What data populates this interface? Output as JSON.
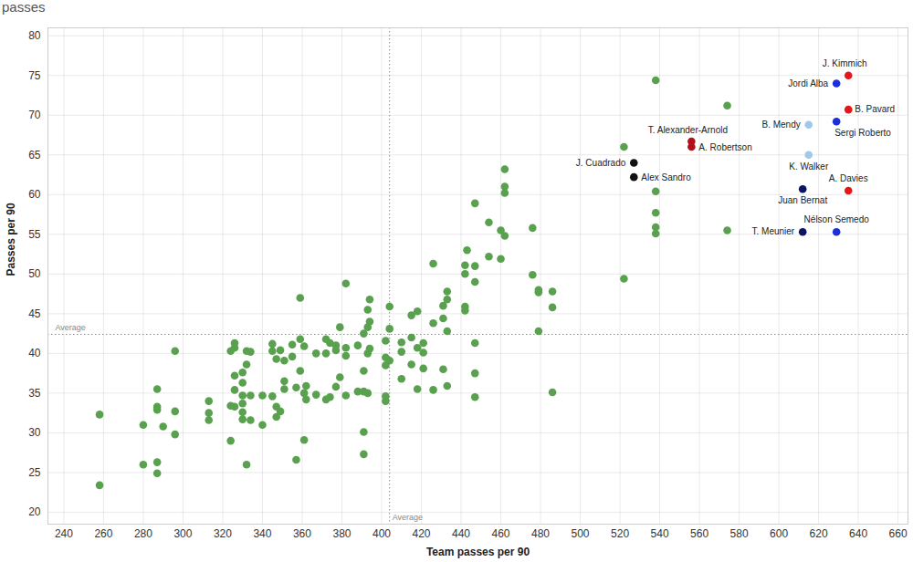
{
  "chart_data": {
    "type": "scatter",
    "title": "passes",
    "x_label": "Team passes per 90",
    "y_label": "Passes per 90",
    "xlim": [
      232,
      665
    ],
    "ylim": [
      18.5,
      81
    ],
    "xticks": [
      240,
      260,
      280,
      300,
      320,
      340,
      360,
      380,
      400,
      420,
      440,
      460,
      480,
      500,
      520,
      540,
      560,
      580,
      600,
      620,
      640,
      660
    ],
    "yticks": [
      20,
      25,
      30,
      35,
      40,
      45,
      50,
      55,
      60,
      65,
      70,
      75,
      80
    ],
    "grid": true,
    "marker": "circle",
    "color": "#59a14f",
    "x": [
      258,
      258,
      280,
      280,
      287,
      287,
      287,
      287,
      287,
      290,
      296,
      296,
      296,
      313,
      313,
      313,
      324,
      324,
      324,
      326,
      326,
      326,
      326,
      326,
      330,
      330,
      330,
      330,
      330,
      330,
      332,
      332,
      332,
      334,
      334,
      334,
      340,
      340,
      345,
      345,
      345,
      347,
      347,
      347,
      349,
      349,
      351,
      351,
      351,
      355,
      355,
      357,
      357,
      359,
      359,
      359,
      361,
      361,
      361,
      362,
      362,
      367,
      367,
      372,
      372,
      372,
      374,
      374,
      377,
      377,
      377,
      379,
      379,
      382,
      382,
      382,
      382,
      388,
      388,
      391,
      391,
      391,
      391,
      391,
      393,
      393,
      393,
      393,
      394,
      394,
      394,
      402,
      402,
      402,
      402,
      402,
      404,
      404,
      404,
      410,
      410,
      410,
      415,
      415,
      415,
      418,
      418,
      418,
      421,
      421,
      421,
      426,
      426,
      426,
      431,
      431,
      431,
      433,
      433,
      433,
      433,
      442,
      442,
      442,
      442,
      443,
      447,
      447,
      447,
      447,
      447,
      447,
      454,
      454,
      460,
      460,
      462,
      462,
      462,
      462,
      476,
      476,
      479,
      479,
      479,
      486,
      486,
      486,
      522,
      522,
      538,
      538,
      538,
      538,
      538,
      574,
      574
    ],
    "y": [
      32.3,
      23.4,
      31.0,
      26.0,
      35.5,
      33.3,
      32.9,
      26.3,
      24.9,
      30.8,
      40.3,
      32.7,
      29.8,
      34.0,
      32.5,
      31.6,
      40.3,
      33.4,
      29.0,
      41.3,
      40.7,
      37.2,
      35.4,
      33.3,
      37.6,
      36.3,
      34.7,
      33.7,
      32.6,
      31.7,
      40.3,
      38.6,
      26.0,
      40.2,
      34.7,
      31.6,
      31.0,
      34.7,
      41.2,
      40.3,
      34.6,
      39.3,
      33.3,
      32.0,
      40.4,
      32.7,
      36.5,
      35.5,
      39.1,
      39.6,
      41.1,
      35.7,
      26.6,
      47.0,
      41.8,
      37.8,
      40.9,
      35.0,
      29.1,
      35.9,
      34.2,
      40.0,
      34.8,
      41.8,
      40.0,
      34.2,
      41.3,
      34.5,
      41.0,
      40.4,
      35.8,
      43.3,
      37.0,
      48.8,
      40.7,
      39.7,
      34.7,
      41.0,
      35.2,
      42.5,
      37.8,
      35.2,
      30.1,
      27.3,
      45.5,
      43.3,
      40.0,
      35.0,
      46.8,
      44.0,
      40.6,
      41.6,
      39.5,
      38.5,
      34.6,
      34.0,
      45.9,
      43.1,
      39.1,
      41.4,
      40.2,
      36.8,
      44.8,
      42.0,
      38.6,
      45.3,
      40.7,
      35.5,
      41.3,
      40.1,
      38.1,
      51.3,
      43.8,
      35.4,
      46.0,
      44.4,
      38.0,
      47.8,
      46.8,
      42.8,
      35.9,
      51.1,
      50.0,
      45.9,
      45.4,
      53.0,
      58.9,
      51.0,
      49.0,
      41.3,
      37.5,
      34.5,
      56.5,
      52.2,
      55.5,
      51.9,
      63.2,
      61.0,
      60.2,
      54.8,
      55.8,
      49.9,
      48.0,
      47.7,
      42.8,
      47.8,
      45.8,
      35.1,
      66.0,
      49.4,
      74.4,
      60.4,
      57.7,
      55.9,
      55.1,
      71.2,
      55.5
    ],
    "highlights": [
      {
        "label": "J. Kimmich",
        "x": 635,
        "y": 75.0,
        "color": "#e3161b"
      },
      {
        "label": "Jordi Alba",
        "x": 629,
        "y": 74.0,
        "color": "#1c2fd8"
      },
      {
        "label": "B. Pavard",
        "x": 635,
        "y": 70.7,
        "color": "#e3161b"
      },
      {
        "label": "B. Mendy",
        "x": 615,
        "y": 68.8,
        "color": "#9fc8ea"
      },
      {
        "label": "Sergi Roberto",
        "x": 629,
        "y": 69.2,
        "color": "#1c2fd8"
      },
      {
        "label": "T. Alexander-Arnold",
        "x": 556,
        "y": 66.7,
        "color": "#b0121b"
      },
      {
        "label": "A. Robertson",
        "x": 556,
        "y": 66.0,
        "color": "#b0121b"
      },
      {
        "label": "J. Cuadrado",
        "x": 527,
        "y": 64.0,
        "color": "#111111"
      },
      {
        "label": "Alex Sandro",
        "x": 527,
        "y": 62.2,
        "color": "#111111"
      },
      {
        "label": "K. Walker",
        "x": 615,
        "y": 65.0,
        "color": "#9fc8ea"
      },
      {
        "label": "A. Davies",
        "x": 635,
        "y": 60.5,
        "color": "#e3161b"
      },
      {
        "label": "Juan Bernat",
        "x": 612,
        "y": 60.7,
        "color": "#0b1463"
      },
      {
        "label": "Nélson Semedo",
        "x": 629,
        "y": 55.3,
        "color": "#1c2fd8"
      },
      {
        "label": "T. Meunier",
        "x": 612,
        "y": 55.3,
        "color": "#0b1463"
      }
    ],
    "reference_lines": [
      {
        "axis": "x",
        "value": 404,
        "label": "Average"
      },
      {
        "axis": "y",
        "value": 42.4,
        "label": "Average"
      }
    ]
  }
}
